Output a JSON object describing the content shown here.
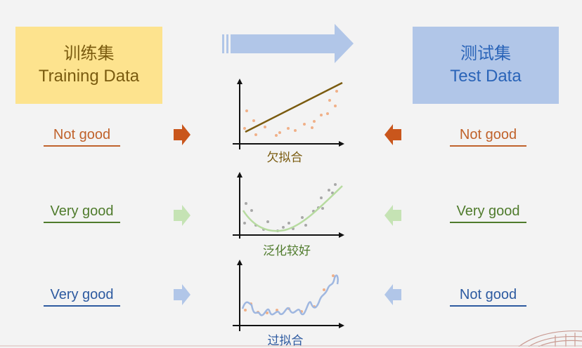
{
  "train_box": {
    "line1": "训练集",
    "line2": "Training Data",
    "color": "#fde38e"
  },
  "test_box": {
    "line1": "测试集",
    "line2": "Test Data",
    "color": "#b1c6e8"
  },
  "rows": [
    {
      "train_label": "Not good",
      "test_label": "Not good",
      "caption": "欠拟合",
      "color": "#c0622b",
      "arrow_color": "#c9561c"
    },
    {
      "train_label": "Very good",
      "test_label": "Very good",
      "caption": "泛化较好",
      "color": "#4f7b2c",
      "arrow_color": "#c5e3b4"
    },
    {
      "train_label": "Very good",
      "test_label": "Not good",
      "caption": "过拟合",
      "color": "#2d5aa0",
      "arrow_color": "#b1c6e8"
    }
  ],
  "icons": {
    "top_arrow": "right-arrow-icon",
    "row_arrow_left": "right-arrow-icon",
    "row_arrow_right": "left-arrow-icon"
  }
}
